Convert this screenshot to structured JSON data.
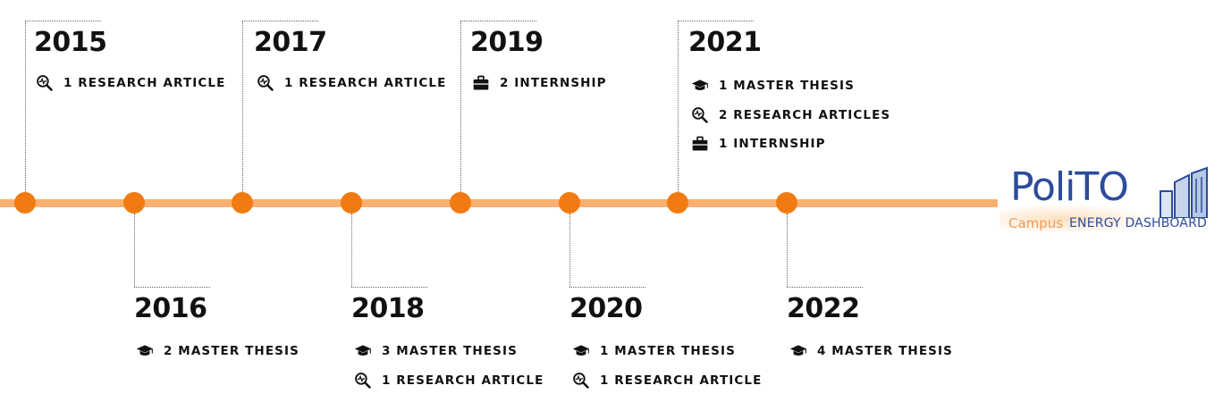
{
  "timeline": {
    "milestones": [
      {
        "year": "2015",
        "items": [
          {
            "icon": "magnifier-chart-icon",
            "label": "1 RESEARCH ARTICLE"
          }
        ]
      },
      {
        "year": "2016",
        "items": [
          {
            "icon": "graduation-cap-icon",
            "label": "2 MASTER THESIS"
          }
        ]
      },
      {
        "year": "2017",
        "items": [
          {
            "icon": "magnifier-chart-icon",
            "label": "1 RESEARCH ARTICLE"
          }
        ]
      },
      {
        "year": "2018",
        "items": [
          {
            "icon": "graduation-cap-icon",
            "label": "3 MASTER THESIS"
          },
          {
            "icon": "magnifier-chart-icon",
            "label": "1 RESEARCH ARTICLE"
          }
        ]
      },
      {
        "year": "2019",
        "items": [
          {
            "icon": "briefcase-icon",
            "label": "2 INTERNSHIP"
          }
        ]
      },
      {
        "year": "2020",
        "items": [
          {
            "icon": "graduation-cap-icon",
            "label": "1 MASTER THESIS"
          },
          {
            "icon": "magnifier-chart-icon",
            "label": "1 RESEARCH ARTICLE"
          }
        ]
      },
      {
        "year": "2021",
        "items": [
          {
            "icon": "graduation-cap-icon",
            "label": "1 MASTER THESIS"
          },
          {
            "icon": "magnifier-chart-icon",
            "label": "2 RESEARCH ARTICLES"
          },
          {
            "icon": "briefcase-icon",
            "label": "1 INTERNSHIP"
          }
        ]
      },
      {
        "year": "2022",
        "items": [
          {
            "icon": "graduation-cap-icon",
            "label": "4 MASTER THESIS"
          }
        ]
      }
    ]
  },
  "logo": {
    "name": "PoliTO",
    "campus": "Campus",
    "subtitle": "ENERGY DASHBOARD"
  },
  "colors": {
    "bar": "#fbb071",
    "dot": "#f17b12",
    "logo_blue": "#2c4c9c",
    "logo_orange": "#f29a55"
  }
}
